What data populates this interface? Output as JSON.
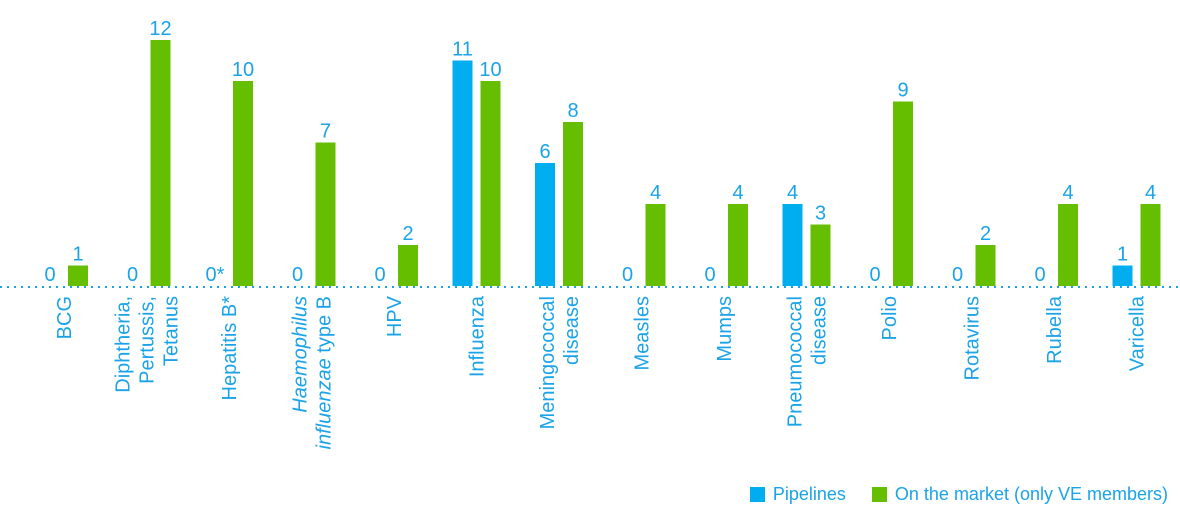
{
  "chart_data": {
    "type": "bar",
    "title": "",
    "xlabel": "",
    "ylabel": "",
    "ylim": [
      0,
      12
    ],
    "grid": false,
    "legend_position": "bottom-right",
    "categories": [
      {
        "lines": [
          [
            "BCG"
          ]
        ]
      },
      {
        "lines": [
          [
            "Diphtheria,"
          ],
          [
            "Pertussis,"
          ],
          [
            "Tetanus"
          ]
        ]
      },
      {
        "lines": [
          [
            "Hepatitis B*"
          ]
        ]
      },
      {
        "lines": [
          [
            "Haemophilus",
            "i"
          ],
          [
            "influenzae",
            "i",
            " type B",
            "n"
          ]
        ]
      },
      {
        "lines": [
          [
            "HPV"
          ]
        ]
      },
      {
        "lines": [
          [
            "Influenza"
          ]
        ]
      },
      {
        "lines": [
          [
            "Meningococcal"
          ],
          [
            "disease"
          ]
        ]
      },
      {
        "lines": [
          [
            "Measles"
          ]
        ]
      },
      {
        "lines": [
          [
            "Mumps"
          ]
        ]
      },
      {
        "lines": [
          [
            "Pneumococcal"
          ],
          [
            "disease"
          ]
        ]
      },
      {
        "lines": [
          [
            "Polio"
          ]
        ]
      },
      {
        "lines": [
          [
            "Rotavirus"
          ]
        ]
      },
      {
        "lines": [
          [
            "Rubella"
          ]
        ]
      },
      {
        "lines": [
          [
            "Varicella"
          ]
        ]
      }
    ],
    "series": [
      {
        "name": "Pipelines",
        "color": "#00aeef",
        "values": [
          0,
          0,
          0,
          0,
          0,
          11,
          6,
          0,
          0,
          4,
          0,
          0,
          0,
          1
        ],
        "labels": [
          "0",
          "0",
          "0*",
          "0",
          "0",
          "11",
          "6",
          "0",
          "0",
          "4",
          "0",
          "0",
          "0",
          "1"
        ]
      },
      {
        "name": "On the market (only VE members)",
        "color": "#65bf00",
        "values": [
          1,
          12,
          10,
          7,
          2,
          10,
          8,
          4,
          4,
          3,
          9,
          2,
          4,
          4
        ],
        "labels": [
          "1",
          "12",
          "10",
          "7",
          "2",
          "10",
          "8",
          "4",
          "4",
          "3",
          "9",
          "2",
          "4",
          "4"
        ]
      }
    ]
  },
  "legend": {
    "pipelines_label": "Pipelines",
    "pipelines_color": "#00aeef",
    "market_label": "On the market (only VE members)",
    "market_color": "#65bf00"
  }
}
